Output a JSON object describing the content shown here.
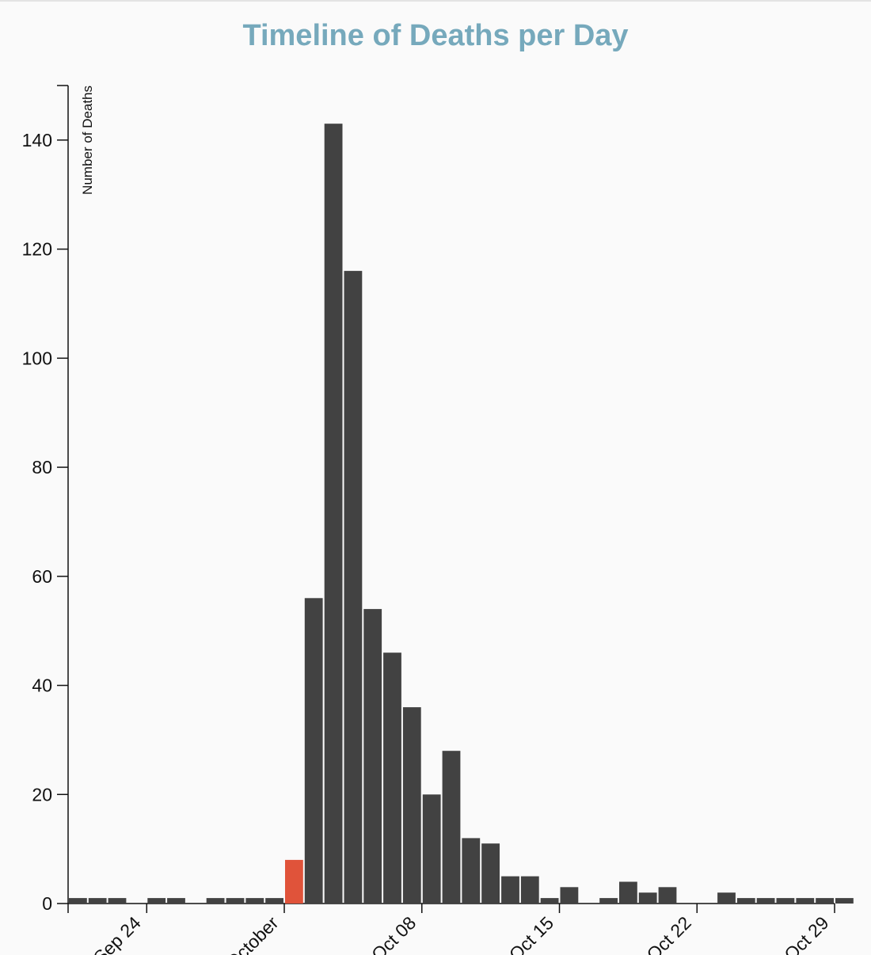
{
  "chart_data": {
    "type": "bar",
    "title": "Timeline of Deaths per Day",
    "xlabel": "",
    "ylabel": "Number of Deaths",
    "ylim": [
      0,
      150
    ],
    "yticks": [
      0,
      20,
      40,
      60,
      80,
      100,
      120,
      140
    ],
    "x_start": "2017-09-20",
    "x_end": "2017-10-29",
    "xticks": [
      {
        "date": "2017-09-24",
        "label": "Sep 24"
      },
      {
        "date": "2017-10-01",
        "label": "October"
      },
      {
        "date": "2017-10-08",
        "label": "Oct 08"
      },
      {
        "date": "2017-10-15",
        "label": "Oct 15"
      },
      {
        "date": "2017-10-22",
        "label": "Oct 22"
      },
      {
        "date": "2017-10-29",
        "label": "Oct 29"
      }
    ],
    "bar_color": "#424242",
    "highlight_color": "#e0533a",
    "highlight_date": "2017-10-02",
    "bars": [
      {
        "date": "2017-09-21",
        "value": 1
      },
      {
        "date": "2017-09-22",
        "value": 1
      },
      {
        "date": "2017-09-23",
        "value": 1
      },
      {
        "date": "2017-09-24",
        "value": 0
      },
      {
        "date": "2017-09-25",
        "value": 1
      },
      {
        "date": "2017-09-26",
        "value": 1
      },
      {
        "date": "2017-09-27",
        "value": 0
      },
      {
        "date": "2017-09-28",
        "value": 1
      },
      {
        "date": "2017-09-29",
        "value": 1
      },
      {
        "date": "2017-09-30",
        "value": 1
      },
      {
        "date": "2017-10-01",
        "value": 1
      },
      {
        "date": "2017-10-02",
        "value": 8
      },
      {
        "date": "2017-10-03",
        "value": 56
      },
      {
        "date": "2017-10-04",
        "value": 143
      },
      {
        "date": "2017-10-05",
        "value": 116
      },
      {
        "date": "2017-10-06",
        "value": 54
      },
      {
        "date": "2017-10-07",
        "value": 46
      },
      {
        "date": "2017-10-08",
        "value": 36
      },
      {
        "date": "2017-10-09",
        "value": 20
      },
      {
        "date": "2017-10-10",
        "value": 28
      },
      {
        "date": "2017-10-11",
        "value": 12
      },
      {
        "date": "2017-10-12",
        "value": 11
      },
      {
        "date": "2017-10-13",
        "value": 5
      },
      {
        "date": "2017-10-14",
        "value": 5
      },
      {
        "date": "2017-10-15",
        "value": 1
      },
      {
        "date": "2017-10-16",
        "value": 3
      },
      {
        "date": "2017-10-17",
        "value": 0
      },
      {
        "date": "2017-10-18",
        "value": 1
      },
      {
        "date": "2017-10-19",
        "value": 4
      },
      {
        "date": "2017-10-20",
        "value": 2
      },
      {
        "date": "2017-10-21",
        "value": 3
      },
      {
        "date": "2017-10-22",
        "value": 0
      },
      {
        "date": "2017-10-23",
        "value": 0
      },
      {
        "date": "2017-10-24",
        "value": 2
      },
      {
        "date": "2017-10-25",
        "value": 1
      },
      {
        "date": "2017-10-26",
        "value": 1
      },
      {
        "date": "2017-10-27",
        "value": 1
      },
      {
        "date": "2017-10-28",
        "value": 1
      },
      {
        "date": "2017-10-29",
        "value": 1
      },
      {
        "date": "2017-10-30",
        "value": 1
      }
    ]
  }
}
